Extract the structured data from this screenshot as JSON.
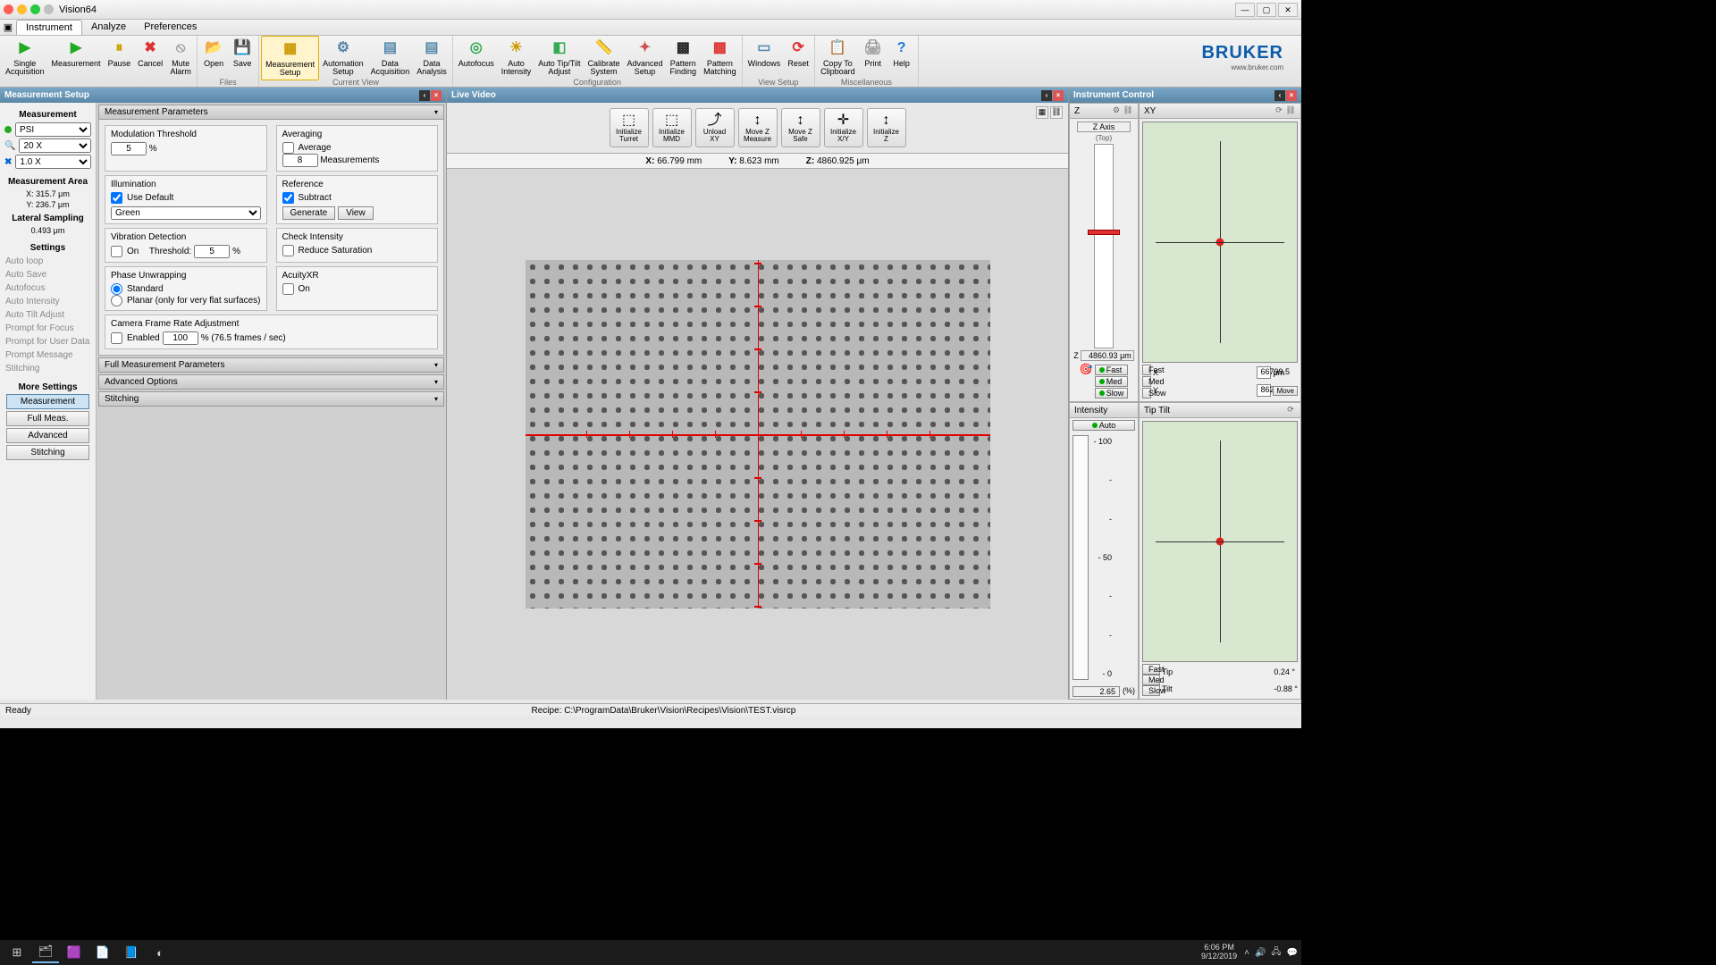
{
  "app": {
    "title": "Vision64",
    "brand": "BRUKER",
    "brand_url": "www.bruker.com",
    "accent": "#0b5cab"
  },
  "menu": {
    "tabs": [
      "Instrument",
      "Analyze",
      "Preferences"
    ],
    "active": 0
  },
  "ribbon": {
    "groups": [
      {
        "label": "",
        "items": [
          {
            "t": "Single\nAcquisition",
            "g": "▶",
            "c": "#2a2"
          },
          {
            "t": "Measurement",
            "g": "▶",
            "c": "#2a2"
          },
          {
            "t": "Pause",
            "g": "⏸",
            "c": "#cca000"
          },
          {
            "t": "Cancel",
            "g": "✖",
            "c": "#d33"
          },
          {
            "t": "Mute\nAlarm",
            "g": "⦸",
            "c": "#999"
          }
        ]
      },
      {
        "label": "Files",
        "items": [
          {
            "t": "Open",
            "g": "📂",
            "c": "#c90"
          },
          {
            "t": "Save",
            "g": "💾",
            "c": "#58a"
          }
        ]
      },
      {
        "label": "Current View",
        "items": [
          {
            "t": "Measurement\nSetup",
            "g": "▦",
            "c": "#c90",
            "sel": true
          },
          {
            "t": "Automation\nSetup",
            "g": "⚙",
            "c": "#58a"
          },
          {
            "t": "Data\nAcquisition",
            "g": "▤",
            "c": "#58a"
          },
          {
            "t": "Data\nAnalysis",
            "g": "▤",
            "c": "#58a"
          }
        ]
      },
      {
        "label": "Configuration",
        "items": [
          {
            "t": "Autofocus",
            "g": "◎",
            "c": "#3a5"
          },
          {
            "t": "Auto\nIntensity",
            "g": "☀",
            "c": "#c90"
          },
          {
            "t": "Auto Tip/Tilt\nAdjust",
            "g": "◧",
            "c": "#3a5"
          },
          {
            "t": "Calibrate\nSystem",
            "g": "📏",
            "c": "#c90"
          },
          {
            "t": "Advanced\nSetup",
            "g": "✦",
            "c": "#c55"
          },
          {
            "t": "Pattern\nFinding",
            "g": "▩",
            "c": "#222"
          },
          {
            "t": "Pattern\nMatching",
            "g": "▩",
            "c": "#d33"
          }
        ]
      },
      {
        "label": "View Setup",
        "items": [
          {
            "t": "Windows",
            "g": "▭",
            "c": "#58a"
          },
          {
            "t": "Reset",
            "g": "⟳",
            "c": "#d33"
          }
        ]
      },
      {
        "label": "Miscellaneous",
        "items": [
          {
            "t": "Copy To\nClipboard",
            "g": "📋",
            "c": "#999"
          },
          {
            "t": "Print",
            "g": "🖨",
            "c": "#999"
          },
          {
            "t": "Help",
            "g": "?",
            "c": "#27d"
          }
        ]
      }
    ]
  },
  "panels": {
    "left_title": "Measurement Setup",
    "center_title": "Live Video",
    "right_title": "Instrument Control"
  },
  "leftnav": {
    "meas_head": "Measurement",
    "rows": [
      {
        "dot": "#2a2",
        "val": "PSI"
      },
      {
        "dot": "",
        "icon": "🔍",
        "val": "20 X"
      },
      {
        "dot": "",
        "icon": "✖",
        "iconc": "#06c",
        "val": "1.0 X"
      }
    ],
    "area_head": "Measurement Area",
    "area_x": "X: 315.7 μm",
    "area_y": "Y: 236.7 μm",
    "lat_head": "Lateral Sampling",
    "lat_val": "0.493 μm",
    "settings_head": "Settings",
    "settings": [
      "Auto loop",
      "Auto Save",
      "Autofocus",
      "Auto Intensity",
      "Auto Tilt Adjust",
      "Prompt for Focus",
      "Prompt for User Data",
      "Prompt Message",
      "Stitching"
    ],
    "more_head": "More Settings",
    "more": [
      {
        "t": "Measurement",
        "active": true
      },
      {
        "t": "Full Meas.",
        "active": false
      },
      {
        "t": "Advanced",
        "active": false
      },
      {
        "t": "Stitching",
        "active": false
      }
    ]
  },
  "params": {
    "acc0": "Measurement Parameters",
    "mod_head": "Modulation Threshold",
    "mod_val": "5",
    "mod_unit": "%",
    "avg_head": "Averaging",
    "avg_chk": "Average",
    "avg_val": "8",
    "avg_unit": "Measurements",
    "ill_head": "Illumination",
    "ill_chk": "Use Default",
    "ill_sel": "Green",
    "ref_head": "Reference",
    "ref_chk": "Subtract",
    "ref_gen": "Generate",
    "ref_view": "View",
    "vib_head": "Vibration Detection",
    "vib_on": "On",
    "vib_lbl": "Threshold:",
    "vib_val": "5",
    "vib_unit": "%",
    "chk_head": "Check Intensity",
    "chk_red": "Reduce Saturation",
    "pha_head": "Phase Unwrapping",
    "pha_std": "Standard",
    "pha_plan": "Planar (only for very flat surfaces)",
    "acu_head": "AcuityXR",
    "acu_on": "On",
    "cam_head": "Camera Frame Rate Adjustment",
    "cam_en": "Enabled",
    "cam_val": "100",
    "cam_txt": "%  (76.5 frames / sec)",
    "acc1": "Full Measurement Parameters",
    "acc2": "Advanced Options",
    "acc3": "Stitching"
  },
  "live": {
    "btns": [
      {
        "t": "Initialize\nTurret",
        "ic": "⬚"
      },
      {
        "t": "Initialize\nMMD",
        "ic": "⬚"
      },
      {
        "t": "Unload\nXY",
        "ic": "⤴"
      },
      {
        "t": "Move Z\nMeasure",
        "ic": "↕"
      },
      {
        "t": "Move Z\nSafe",
        "ic": "↕"
      },
      {
        "t": "Initialize\nX/Y",
        "ic": "✛"
      },
      {
        "t": "Initialize\nZ",
        "ic": "↕"
      }
    ],
    "x_lbl": "X:",
    "x_val": "66.799 mm",
    "y_lbl": "Y:",
    "y_val": "8.623 mm",
    "z_lbl": "Z:",
    "z_val": "4860.925 μm"
  },
  "ctrl": {
    "z_title": "Z",
    "z_axis": "Z Axis",
    "z_top": "(Top)",
    "z_val": "4860.93 μm",
    "z_pos_pct": 42,
    "xy_title": "XY",
    "x_lbl": "X",
    "x_val": "66799.5",
    "x_unit": "μm",
    "y_lbl": "Y",
    "y_val": "8623",
    "move_btn": "Move",
    "speeds": [
      "Fast",
      "Med",
      "Slow"
    ],
    "int_title": "Intensity",
    "int_auto": "Auto",
    "int_100": "- 100",
    "int_50": "- 50",
    "int_0": "- 0",
    "int_dash": "-",
    "int_val": "2.65",
    "int_unit": "(%)",
    "tilt_title": "Tip Tilt",
    "tip_lbl": "Tip",
    "tip_val": "0.24 °",
    "tilt_lbl": "Tilt",
    "tilt_val": "-0.88 °"
  },
  "status": {
    "ready": "Ready",
    "recipe": "Recipe: C:\\ProgramData\\Bruker\\Vision\\Recipes\\Vision\\TEST.visrcp"
  },
  "taskbar": {
    "time": "6:06 PM",
    "date": "9/12/2019"
  }
}
